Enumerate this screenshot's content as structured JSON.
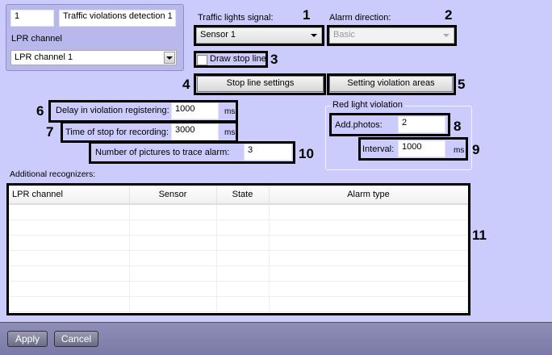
{
  "object": {
    "id": "1",
    "name": "Traffic violations detection 1",
    "lpr_label": "LPR channel",
    "lpr_value": "LPR channel 1"
  },
  "traffic_signal": {
    "label": "Traffic lights signal:",
    "value": "Sensor 1"
  },
  "alarm_direction": {
    "label": "Alarm direction:",
    "value": "Basic"
  },
  "draw_stop_line": {
    "label": "Draw stop line",
    "checked": false
  },
  "buttons": {
    "stop_line": "Stop line settings",
    "violation_areas": "Setting violation areas",
    "apply": "Apply",
    "cancel": "Cancel"
  },
  "delay": {
    "label": "Delay in violation registering:",
    "value": "1000",
    "unit": "ms"
  },
  "stop_time": {
    "label": "Time of stop for recording:",
    "value": "3000",
    "unit": "ms"
  },
  "pictures": {
    "label": "Number of pictures to trace alarm:",
    "value": "3"
  },
  "red_light": {
    "title": "Red light violation",
    "add_photos_label": "Add.photos:",
    "add_photos": "2",
    "interval_label": "Interval:",
    "interval": "1000",
    "unit": "ms"
  },
  "recognizers": {
    "label": "Additional recognizers:",
    "columns": [
      "LPR channel",
      "Sensor",
      "State",
      "Alarm type"
    ]
  },
  "callouts": [
    "1",
    "2",
    "3",
    "4",
    "5",
    "6",
    "7",
    "8",
    "9",
    "10",
    "11"
  ]
}
